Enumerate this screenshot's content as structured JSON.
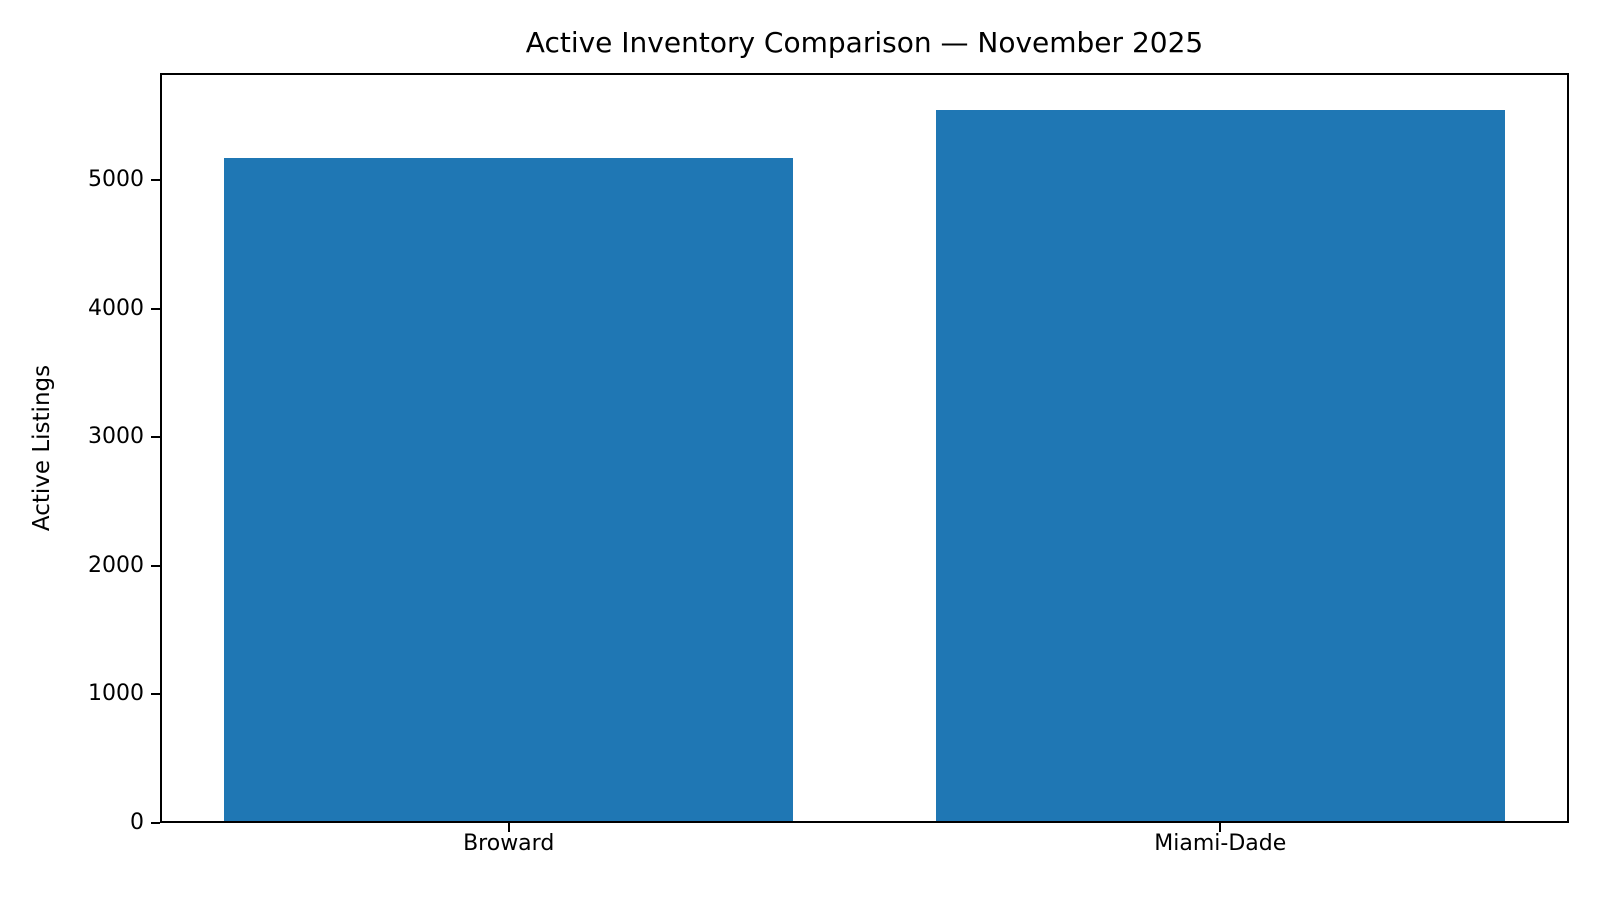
{
  "chart_data": {
    "type": "bar",
    "title": "Active Inventory Comparison — November 2025",
    "xlabel": "",
    "ylabel": "Active Listings",
    "categories": [
      "Broward",
      "Miami-Dade"
    ],
    "values": [
      5170,
      5545
    ],
    "yticks": [
      0,
      1000,
      2000,
      3000,
      4000,
      5000
    ],
    "ylim": [
      0,
      5833
    ],
    "xlim": [
      -0.49,
      1.49
    ],
    "bar_width": 0.8,
    "bar_color": "#1f77b4",
    "grid": false,
    "legend": null,
    "background_color": "#ffffff",
    "axis_color": "#000000"
  }
}
